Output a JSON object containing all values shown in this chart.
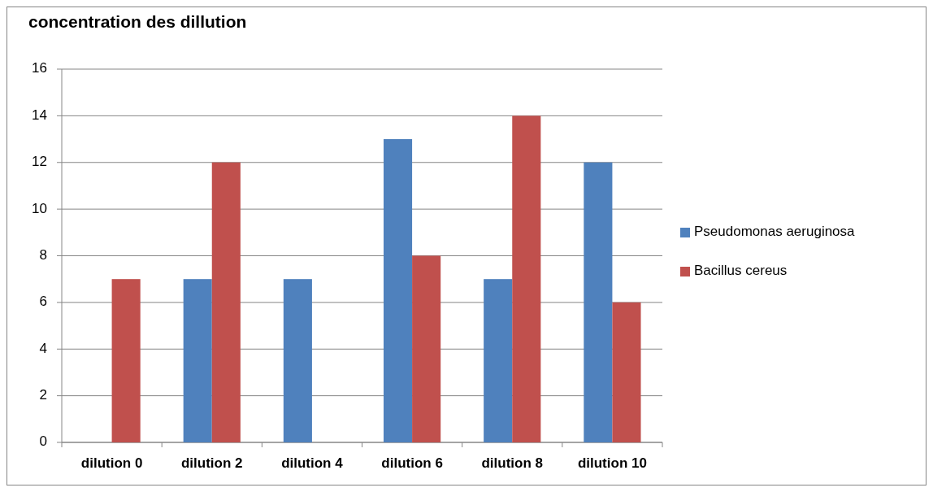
{
  "chart_data": {
    "type": "bar",
    "title": "concentration des dillution",
    "categories": [
      "dilution 0",
      "dilution 2",
      "dilution 4",
      "dilution 6",
      "dilution 8",
      "dilution 10"
    ],
    "series": [
      {
        "name": "Pseudomonas aeruginosa",
        "color": "#4f81bd",
        "values": [
          0,
          7,
          7,
          13,
          7,
          12
        ]
      },
      {
        "name": "Bacillus cereus",
        "color": "#c0504d",
        "values": [
          7,
          12,
          0,
          8,
          14,
          6
        ]
      }
    ],
    "ylim": [
      0,
      16
    ],
    "yticks": [
      0,
      2,
      4,
      6,
      8,
      10,
      12,
      14,
      16
    ],
    "grid": "y",
    "legend": "right"
  }
}
